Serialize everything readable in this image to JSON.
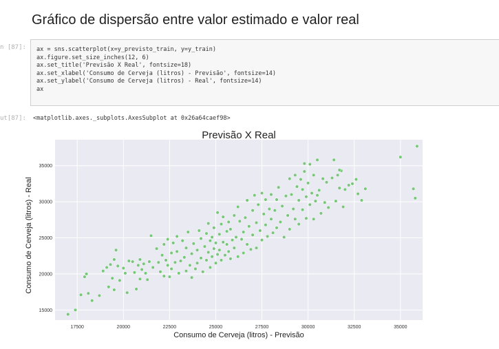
{
  "heading": "Gráfico de dispersão entre valor estimado e valor real",
  "cell": {
    "in_prompt": "n [87]:",
    "out_prompt": "ut[87]:",
    "code_lines": [
      "ax = sns.scatterplot(x=y_previsto_train, y=y_train)",
      "ax.figure.set_size_inches(12, 6)",
      "ax.set_title('Previsão X Real', fontsize=18)",
      "ax.set_xlabel('Consumo de Cerveja (litros) - Previsão', fontsize=14)",
      "ax.set_ylabel('Consumo de Cerveja (litros) - Real', fontsize=14)",
      "ax"
    ],
    "output_text": "<matplotlib.axes._subplots.AxesSubplot at 0x26a64caef98>"
  },
  "chart_data": {
    "type": "scatter",
    "title": "Previsão X Real",
    "xlabel": "Consumo de Cerveja (litros) - Previsão",
    "ylabel": "Consumo de Cerveja (litros) - Real",
    "xlim": [
      16300,
      36200
    ],
    "ylim": [
      13600,
      38600
    ],
    "xticks": [
      17500,
      20000,
      22500,
      25000,
      27500,
      30000,
      32500,
      35000
    ],
    "yticks": [
      15000,
      20000,
      25000,
      30000,
      35000
    ],
    "xtick_labels": [
      "17500",
      "20000",
      "22500",
      "25000",
      "27500",
      "30000",
      "32500",
      "35000"
    ],
    "ytick_labels": [
      "15000",
      "20000",
      "25000",
      "30000",
      "35000"
    ],
    "grid": true,
    "colors": {
      "point": "#78c679",
      "axes_bg": "#eaeaf2",
      "grid": "#ffffff"
    },
    "points": [
      [
        17000,
        14400
      ],
      [
        17400,
        15000
      ],
      [
        17700,
        17100
      ],
      [
        17900,
        19600
      ],
      [
        18000,
        20000
      ],
      [
        18100,
        17300
      ],
      [
        18300,
        16300
      ],
      [
        18700,
        17000
      ],
      [
        18900,
        20400
      ],
      [
        19100,
        20900
      ],
      [
        19300,
        21300
      ],
      [
        19200,
        18200
      ],
      [
        19400,
        19400
      ],
      [
        19500,
        17800
      ],
      [
        19500,
        22000
      ],
      [
        19600,
        23300
      ],
      [
        19700,
        21100
      ],
      [
        19800,
        19100
      ],
      [
        20000,
        20800
      ],
      [
        20100,
        20100
      ],
      [
        20200,
        17400
      ],
      [
        20300,
        21800
      ],
      [
        20500,
        21700
      ],
      [
        20600,
        20200
      ],
      [
        20700,
        17900
      ],
      [
        20800,
        21200
      ],
      [
        20900,
        22000
      ],
      [
        20900,
        19300
      ],
      [
        21000,
        20600
      ],
      [
        21100,
        21400
      ],
      [
        21200,
        20100
      ],
      [
        21300,
        19200
      ],
      [
        21400,
        21700
      ],
      [
        21500,
        25300
      ],
      [
        21600,
        20900
      ],
      [
        21800,
        23500
      ],
      [
        21900,
        21600
      ],
      [
        22000,
        20300
      ],
      [
        22100,
        22600
      ],
      [
        22200,
        24100
      ],
      [
        22200,
        19700
      ],
      [
        22300,
        21900
      ],
      [
        22400,
        24800
      ],
      [
        22400,
        21200
      ],
      [
        22500,
        19600
      ],
      [
        22600,
        22900
      ],
      [
        22600,
        20700
      ],
      [
        22700,
        24300
      ],
      [
        22800,
        21600
      ],
      [
        22900,
        25200
      ],
      [
        22900,
        23100
      ],
      [
        23000,
        20100
      ],
      [
        23100,
        21800
      ],
      [
        23200,
        24600
      ],
      [
        23300,
        22300
      ],
      [
        23400,
        20400
      ],
      [
        23400,
        23600
      ],
      [
        23500,
        25800
      ],
      [
        23600,
        21200
      ],
      [
        23700,
        22800
      ],
      [
        23700,
        19500
      ],
      [
        23800,
        24200
      ],
      [
        23900,
        20700
      ],
      [
        24000,
        23300
      ],
      [
        24000,
        21500
      ],
      [
        24100,
        26000
      ],
      [
        24200,
        24900
      ],
      [
        24200,
        22200
      ],
      [
        24300,
        20300
      ],
      [
        24400,
        23800
      ],
      [
        24500,
        25600
      ],
      [
        24500,
        21900
      ],
      [
        24600,
        27000
      ],
      [
        24600,
        23000
      ],
      [
        24700,
        24600
      ],
      [
        24700,
        20900
      ],
      [
        24800,
        22400
      ],
      [
        24800,
        25100
      ],
      [
        24900,
        26400
      ],
      [
        24900,
        23500
      ],
      [
        25000,
        21500
      ],
      [
        25000,
        24300
      ],
      [
        25100,
        28500
      ],
      [
        25100,
        22700
      ],
      [
        25200,
        25500
      ],
      [
        25200,
        23300
      ],
      [
        25300,
        26900
      ],
      [
        25300,
        21900
      ],
      [
        25400,
        24400
      ],
      [
        25400,
        27900
      ],
      [
        25500,
        22600
      ],
      [
        25600,
        25900
      ],
      [
        25600,
        24100
      ],
      [
        25700,
        23100
      ],
      [
        25700,
        27200
      ],
      [
        25800,
        22100
      ],
      [
        25800,
        26200
      ],
      [
        25900,
        24700
      ],
      [
        26000,
        28100
      ],
      [
        26000,
        23600
      ],
      [
        26100,
        25100
      ],
      [
        26200,
        29300
      ],
      [
        26200,
        22400
      ],
      [
        26300,
        27300
      ],
      [
        26400,
        24800
      ],
      [
        26500,
        25800
      ],
      [
        26500,
        22900
      ],
      [
        26600,
        27800
      ],
      [
        26700,
        30200
      ],
      [
        26700,
        24100
      ],
      [
        26800,
        26600
      ],
      [
        26900,
        23400
      ],
      [
        27000,
        28800
      ],
      [
        27000,
        25400
      ],
      [
        27100,
        30900
      ],
      [
        27200,
        27100
      ],
      [
        27200,
        23600
      ],
      [
        27300,
        29600
      ],
      [
        27400,
        26000
      ],
      [
        27500,
        31200
      ],
      [
        27500,
        24700
      ],
      [
        27600,
        28300
      ],
      [
        27700,
        26800
      ],
      [
        27700,
        30300
      ],
      [
        27800,
        25200
      ],
      [
        27900,
        29000
      ],
      [
        28000,
        27600
      ],
      [
        28000,
        31000
      ],
      [
        28100,
        25700
      ],
      [
        28200,
        28800
      ],
      [
        28300,
        30300
      ],
      [
        28300,
        26400
      ],
      [
        28400,
        32000
      ],
      [
        28500,
        27200
      ],
      [
        28600,
        29400
      ],
      [
        28700,
        25100
      ],
      [
        28800,
        30800
      ],
      [
        28900,
        28100
      ],
      [
        29000,
        33200
      ],
      [
        29000,
        26200
      ],
      [
        29100,
        31000
      ],
      [
        29200,
        29000
      ],
      [
        29300,
        33700
      ],
      [
        29300,
        27600
      ],
      [
        29400,
        32100
      ],
      [
        29500,
        30200
      ],
      [
        29500,
        26900
      ],
      [
        29600,
        33100
      ],
      [
        29700,
        28900
      ],
      [
        29700,
        31700
      ],
      [
        29800,
        34200
      ],
      [
        29900,
        27700
      ],
      [
        29900,
        30700
      ],
      [
        30000,
        32600
      ],
      [
        30100,
        29600
      ],
      [
        30100,
        35200
      ],
      [
        30200,
        31200
      ],
      [
        30300,
        27600
      ],
      [
        30300,
        33700
      ],
      [
        30400,
        30100
      ],
      [
        30500,
        35800
      ],
      [
        30600,
        31600
      ],
      [
        30700,
        28400
      ],
      [
        30800,
        33200
      ],
      [
        30900,
        29900
      ],
      [
        31000,
        32700
      ],
      [
        31100,
        29200
      ],
      [
        31300,
        33300
      ],
      [
        31400,
        35800
      ],
      [
        31500,
        30100
      ],
      [
        31600,
        33700
      ],
      [
        31700,
        31900
      ],
      [
        31800,
        34300
      ],
      [
        31900,
        29300
      ],
      [
        32000,
        31700
      ],
      [
        32200,
        32300
      ],
      [
        32400,
        32500
      ],
      [
        32600,
        33100
      ],
      [
        32700,
        31100
      ],
      [
        32900,
        30200
      ],
      [
        33100,
        31800
      ],
      [
        35000,
        36200
      ],
      [
        35700,
        31800
      ],
      [
        35800,
        30500
      ],
      [
        35900,
        37700
      ],
      [
        30500,
        30900
      ],
      [
        29800,
        35300
      ],
      [
        31700,
        34400
      ]
    ]
  }
}
